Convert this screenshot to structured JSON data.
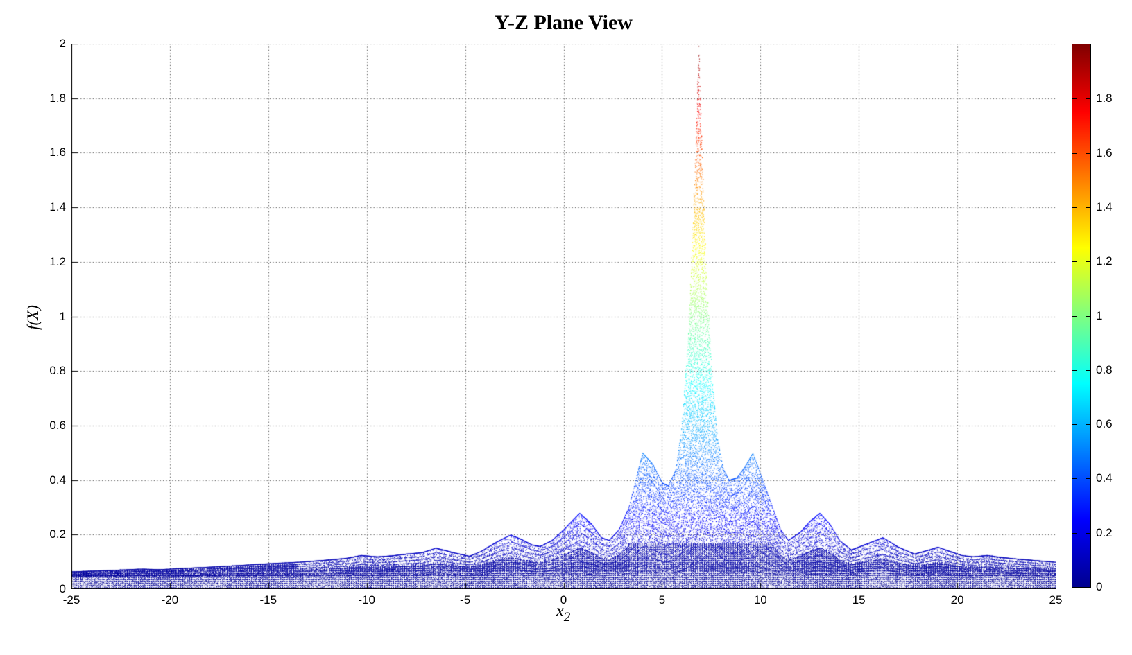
{
  "figure": {
    "title": "Y-Z Plane View",
    "ylabel": "f(X)",
    "xlabel_base": "x",
    "xlabel_sub": "2",
    "background": "#FFFFFF",
    "axis_color": "#000000",
    "grid_color": "#4A4A4A",
    "band_color": "#0000A0"
  },
  "chart_data": {
    "type": "scatter",
    "subtype": "3d-mesh-surface-side-projection",
    "title": "Y-Z Plane View",
    "xlabel": "x_2",
    "ylabel": "f(X)",
    "xlim": [
      -25,
      25
    ],
    "ylim": [
      0,
      2
    ],
    "grid": true,
    "grid_style": "dotted",
    "x_ticks": [
      -25,
      -20,
      -15,
      -10,
      -5,
      0,
      5,
      10,
      15,
      20,
      25
    ],
    "x_tick_labels": [
      "-25",
      "-20",
      "-15",
      "-10",
      "-5",
      "0",
      "5",
      "10",
      "15",
      "20",
      "25"
    ],
    "y_ticks": [
      0,
      0.2,
      0.4,
      0.6,
      0.8,
      1,
      1.2,
      1.4,
      1.6,
      1.8,
      2
    ],
    "y_tick_labels": [
      "0",
      "0.2",
      "0.4",
      "0.6",
      "0.8",
      "1",
      "1.2",
      "1.4",
      "1.6",
      "1.8",
      "2"
    ],
    "peak": {
      "x": 6.85,
      "value": 2.0
    },
    "secondary_peaks": [
      {
        "x": 4.0,
        "value": 0.5
      },
      {
        "x": 9.6,
        "value": 0.5
      },
      {
        "x": 0.8,
        "value": 0.28
      },
      {
        "x": 13.0,
        "value": 0.28
      },
      {
        "x": -2.7,
        "value": 0.2
      },
      {
        "x": 16.2,
        "value": 0.19
      },
      {
        "x": -6.5,
        "value": 0.15
      }
    ],
    "envelope": {
      "x": [
        -25,
        -23,
        -21.5,
        -20.5,
        -19.5,
        -18,
        -16.5,
        -15,
        -13.5,
        -12,
        -11,
        -10.3,
        -9.5,
        -8.8,
        -8,
        -7.2,
        -6.5,
        -5.6,
        -4.8,
        -4.2,
        -3.4,
        -2.7,
        -2.2,
        -1.6,
        -1.2,
        -0.6,
        0,
        0.8,
        1.4,
        1.9,
        2.3,
        2.8,
        3.3,
        4.0,
        4.5,
        5.0,
        5.3,
        5.7,
        6.0,
        6.3,
        6.5,
        6.7,
        6.85,
        7.0,
        7.2,
        7.5,
        7.8,
        8.1,
        8.4,
        8.8,
        9.2,
        9.6,
        10.0,
        10.6,
        11.0,
        11.4,
        12.0,
        12.5,
        13.0,
        13.5,
        14.0,
        14.6,
        15.3,
        16.2,
        17.0,
        17.8,
        18.4,
        19.0,
        19.6,
        20.2,
        20.8,
        21.5,
        22.2,
        23.0,
        24.0,
        25
      ],
      "f": [
        0.065,
        0.07,
        0.075,
        0.073,
        0.077,
        0.082,
        0.088,
        0.095,
        0.1,
        0.108,
        0.115,
        0.125,
        0.12,
        0.123,
        0.13,
        0.135,
        0.152,
        0.135,
        0.122,
        0.14,
        0.175,
        0.2,
        0.185,
        0.163,
        0.158,
        0.18,
        0.22,
        0.28,
        0.24,
        0.19,
        0.18,
        0.22,
        0.3,
        0.5,
        0.46,
        0.39,
        0.38,
        0.44,
        0.6,
        0.9,
        1.2,
        1.6,
        2.0,
        1.65,
        1.2,
        0.8,
        0.55,
        0.44,
        0.4,
        0.41,
        0.45,
        0.5,
        0.42,
        0.3,
        0.22,
        0.18,
        0.21,
        0.25,
        0.28,
        0.24,
        0.18,
        0.145,
        0.165,
        0.19,
        0.155,
        0.13,
        0.142,
        0.155,
        0.14,
        0.125,
        0.12,
        0.125,
        0.118,
        0.112,
        0.106,
        0.1
      ]
    },
    "baseline": 0.048,
    "layer_fractions": [
      1,
      0.84,
      0.7,
      0.57,
      0.45,
      0.34,
      0.24,
      0.16,
      0.09,
      0.04
    ],
    "colormap": {
      "name": "jet",
      "stops": [
        {
          "pos": 0,
          "color": "#00008F"
        },
        {
          "pos": 0.125,
          "color": "#0000FF"
        },
        {
          "pos": 0.375,
          "color": "#00FFFF"
        },
        {
          "pos": 0.625,
          "color": "#FFFF00"
        },
        {
          "pos": 0.875,
          "color": "#FF0000"
        },
        {
          "pos": 1,
          "color": "#800000"
        }
      ]
    },
    "colorbar": {
      "min": 0,
      "max": 2,
      "ticks": [
        0,
        0.2,
        0.4,
        0.6,
        0.8,
        1,
        1.2,
        1.4,
        1.6,
        1.8
      ],
      "tick_labels": [
        "0",
        "0.2",
        "0.4",
        "0.6",
        "0.8",
        "1",
        "1.2",
        "1.4",
        "1.6",
        "1.8"
      ]
    }
  }
}
